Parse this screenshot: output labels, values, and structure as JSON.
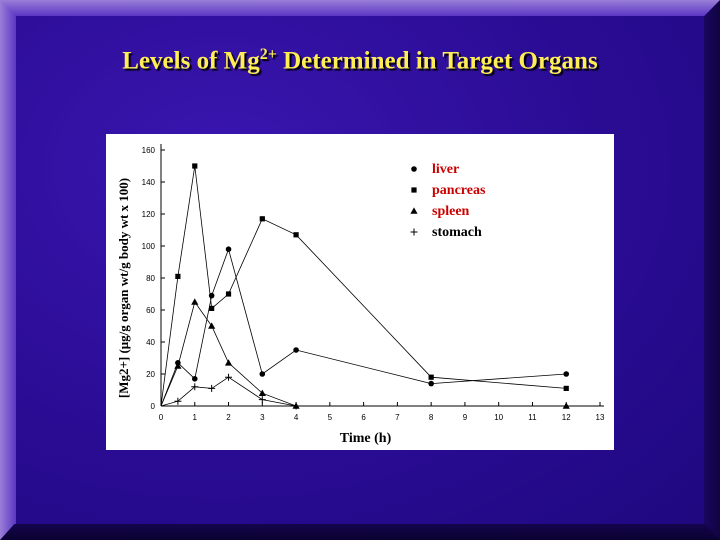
{
  "title": {
    "prefix": "Levels of Mg",
    "sup": "2+",
    "suffix": " Determined in Target Organs"
  },
  "colors": {
    "title": "#ffee55",
    "background": "#2a0c94",
    "panel": "#ffffff",
    "ink": "#000000",
    "legend_text": "#cc0000"
  },
  "chart_data": {
    "type": "line",
    "xlabel": "Time (h)",
    "ylabel": "[Mg2+] (μg/g organ wt/g body wt x 100)",
    "xlim": [
      0,
      13
    ],
    "ylim": [
      0,
      160
    ],
    "xticks": [
      0,
      1,
      2,
      3,
      4,
      5,
      6,
      7,
      8,
      9,
      10,
      11,
      12,
      13
    ],
    "yticks": [
      0,
      20,
      40,
      60,
      80,
      100,
      120,
      140,
      160
    ],
    "legend_position": "top-right",
    "series": [
      {
        "name": "liver",
        "marker": "circle",
        "x": [
          0,
          0.5,
          1,
          1.5,
          2,
          3,
          4,
          8,
          12
        ],
        "y": [
          0,
          27,
          17,
          69,
          98,
          20,
          35,
          14,
          20
        ]
      },
      {
        "name": "pancreas",
        "marker": "square",
        "x": [
          0,
          0.5,
          1,
          1.5,
          2,
          3,
          4,
          8,
          12
        ],
        "y": [
          0,
          81,
          150,
          61,
          70,
          117,
          107,
          18,
          11
        ]
      },
      {
        "name": "spleen",
        "marker": "triangle",
        "x": [
          0,
          0.5,
          1,
          1.5,
          2,
          3,
          4,
          12
        ],
        "y": [
          0,
          25,
          65,
          50,
          27,
          8,
          0,
          0
        ]
      },
      {
        "name": "stomach",
        "marker": "plus",
        "x": [
          0,
          0.5,
          1,
          1.5,
          2,
          3,
          4
        ],
        "y": [
          0,
          3,
          12,
          11,
          18,
          4,
          0
        ]
      }
    ]
  }
}
